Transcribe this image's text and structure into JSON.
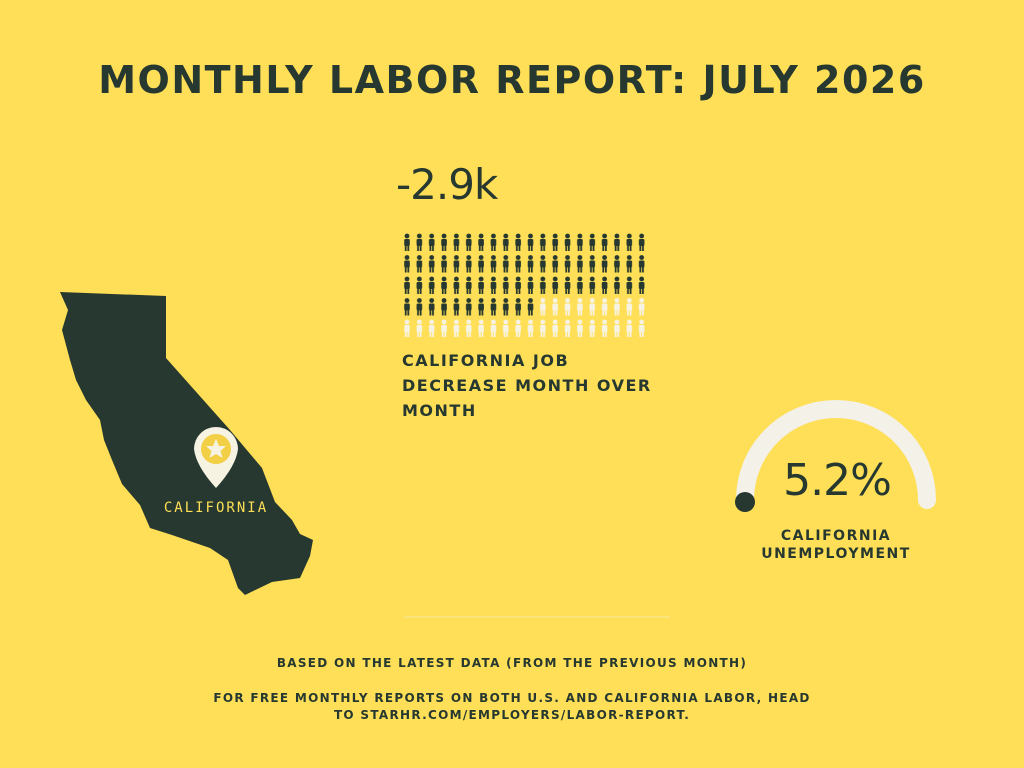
{
  "header": {
    "title": "MONTHLY LABOR REPORT: JULY 2026"
  },
  "map": {
    "label": "CALIFORNIA"
  },
  "jobs": {
    "value": "-2.9k",
    "label": "CALIFORNIA JOB DECREASE MONTH OVER MONTH"
  },
  "unemployment": {
    "value": "5.2%",
    "label": "CALIFORNIA UNEMPLOYMENT"
  },
  "footer": {
    "note": "BASED ON THE LATEST DATA (FROM THE PREVIOUS MONTH)",
    "cta": "FOR FREE MONTHLY REPORTS ON BOTH U.S. AND CALIFORNIA LABOR, HEAD TO STARHR.COM/EMPLOYERS/LABOR-REPORT."
  }
}
